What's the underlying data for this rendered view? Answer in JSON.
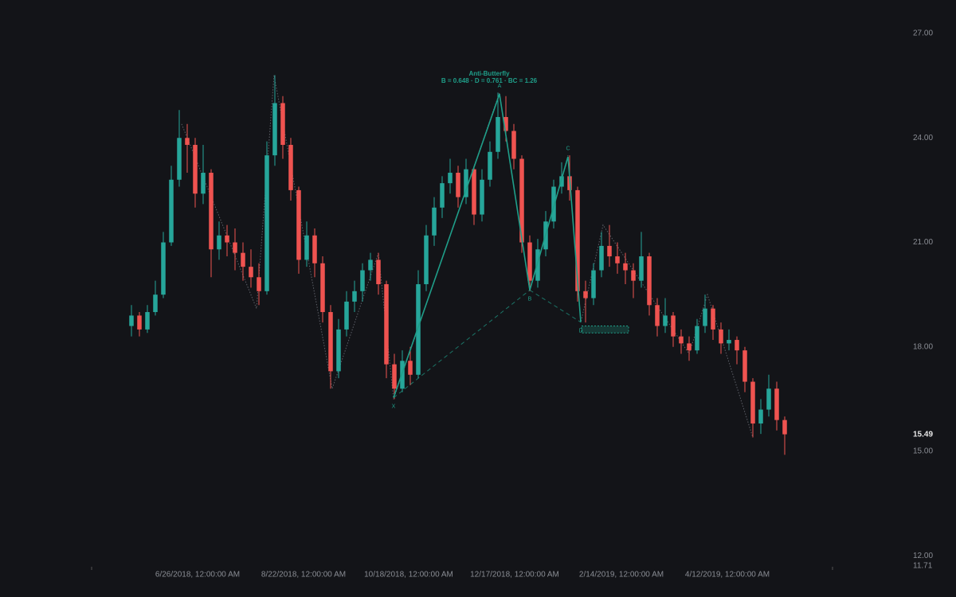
{
  "chart_data": {
    "type": "candlestick",
    "up_color": "#26a69a",
    "down_color": "#ef5350",
    "background": "#131418",
    "xlim": [
      -5,
      88
    ],
    "ylim": [
      11.71,
      27.96
    ],
    "yticks": [
      {
        "value": 12,
        "label": "12.00"
      },
      {
        "value": 15,
        "label": "15.00"
      },
      {
        "value": 18,
        "label": "18.00"
      },
      {
        "value": 21,
        "label": "21.00"
      },
      {
        "value": 24,
        "label": "24.00"
      },
      {
        "value": 27,
        "label": "27.00"
      }
    ],
    "ymin_label": {
      "value": 11.71,
      "label": "11.71"
    },
    "last_price": 15.49,
    "xticks": [
      {
        "value": 8.3,
        "label": "6/26/2018, 12:00:00 AM"
      },
      {
        "value": 21.6,
        "label": "8/22/2018, 12:00:00 AM"
      },
      {
        "value": 34.8,
        "label": "10/18/2018, 12:00:00 AM"
      },
      {
        "value": 48.1,
        "label": "12/17/2018, 12:00:00 AM"
      },
      {
        "value": 61.5,
        "label": "2/14/2019, 12:00:00 AM"
      },
      {
        "value": 74.8,
        "label": "4/12/2019, 12:00:00 AM"
      }
    ],
    "candles": [
      [
        18.6,
        19.2,
        18.3,
        18.9
      ],
      [
        18.9,
        19.0,
        18.3,
        18.5
      ],
      [
        18.5,
        19.2,
        18.4,
        19.0
      ],
      [
        19.0,
        19.9,
        18.9,
        19.5
      ],
      [
        19.5,
        21.3,
        19.4,
        21.0
      ],
      [
        21.0,
        23.2,
        20.9,
        22.8
      ],
      [
        22.8,
        24.8,
        22.6,
        24.0
      ],
      [
        24.0,
        24.4,
        23.0,
        23.8
      ],
      [
        23.8,
        24.0,
        22.0,
        22.4
      ],
      [
        22.4,
        23.8,
        22.1,
        23.0
      ],
      [
        23.0,
        23.1,
        20.0,
        20.8
      ],
      [
        20.8,
        21.6,
        20.5,
        21.2
      ],
      [
        21.2,
        21.5,
        20.6,
        21.0
      ],
      [
        21.0,
        21.4,
        20.2,
        20.7
      ],
      [
        20.7,
        21.0,
        19.9,
        20.3
      ],
      [
        20.3,
        20.8,
        19.7,
        20.0
      ],
      [
        20.0,
        20.4,
        19.2,
        19.6
      ],
      [
        19.6,
        23.9,
        19.5,
        23.5
      ],
      [
        23.5,
        25.8,
        23.2,
        25.0
      ],
      [
        25.0,
        25.2,
        23.4,
        23.8
      ],
      [
        23.8,
        24.0,
        22.2,
        22.5
      ],
      [
        22.5,
        22.6,
        20.1,
        20.5
      ],
      [
        20.5,
        21.6,
        20.3,
        21.2
      ],
      [
        21.2,
        21.4,
        20.0,
        20.4
      ],
      [
        20.4,
        20.6,
        18.7,
        19.0
      ],
      [
        19.0,
        19.2,
        16.8,
        17.3
      ],
      [
        17.3,
        18.8,
        17.1,
        18.5
      ],
      [
        18.5,
        19.6,
        18.3,
        19.3
      ],
      [
        19.3,
        19.9,
        19.0,
        19.6
      ],
      [
        19.6,
        20.4,
        19.3,
        20.2
      ],
      [
        20.2,
        20.7,
        19.9,
        20.5
      ],
      [
        20.5,
        20.7,
        19.5,
        19.8
      ],
      [
        19.8,
        19.9,
        17.1,
        17.5
      ],
      [
        17.5,
        17.8,
        16.5,
        16.8
      ],
      [
        16.8,
        17.9,
        16.7,
        17.6
      ],
      [
        17.6,
        18.0,
        16.9,
        17.2
      ],
      [
        17.2,
        20.2,
        17.1,
        19.8
      ],
      [
        19.8,
        21.5,
        19.6,
        21.2
      ],
      [
        21.2,
        22.3,
        20.9,
        22.0
      ],
      [
        22.0,
        22.9,
        21.7,
        22.7
      ],
      [
        22.7,
        23.4,
        22.4,
        23.0
      ],
      [
        23.0,
        23.2,
        22.0,
        22.3
      ],
      [
        22.3,
        23.4,
        22.1,
        23.1
      ],
      [
        23.1,
        23.2,
        21.5,
        21.8
      ],
      [
        21.8,
        23.1,
        21.6,
        22.8
      ],
      [
        22.8,
        23.9,
        22.6,
        23.6
      ],
      [
        23.6,
        25.3,
        23.4,
        24.6
      ],
      [
        24.6,
        25.2,
        23.9,
        24.2
      ],
      [
        24.2,
        24.4,
        23.1,
        23.4
      ],
      [
        23.4,
        23.5,
        20.7,
        21.0
      ],
      [
        21.0,
        21.2,
        19.6,
        19.9
      ],
      [
        19.9,
        21.1,
        19.7,
        20.8
      ],
      [
        20.8,
        21.9,
        20.6,
        21.6
      ],
      [
        21.6,
        22.8,
        21.4,
        22.6
      ],
      [
        22.6,
        23.3,
        22.4,
        22.9
      ],
      [
        22.9,
        23.5,
        22.2,
        22.5
      ],
      [
        22.5,
        22.6,
        19.3,
        19.6
      ],
      [
        19.6,
        19.9,
        18.7,
        19.4
      ],
      [
        19.4,
        20.4,
        19.2,
        20.2
      ],
      [
        20.2,
        21.3,
        20.0,
        20.9
      ],
      [
        20.9,
        21.5,
        20.3,
        20.6
      ],
      [
        20.6,
        21.0,
        20.1,
        20.4
      ],
      [
        20.4,
        20.7,
        19.8,
        20.2
      ],
      [
        20.2,
        20.4,
        19.4,
        19.9
      ],
      [
        19.9,
        21.3,
        19.7,
        20.6
      ],
      [
        20.6,
        20.7,
        18.9,
        19.2
      ],
      [
        19.2,
        19.4,
        18.3,
        18.6
      ],
      [
        18.6,
        19.4,
        18.4,
        18.9
      ],
      [
        18.9,
        19.0,
        18.0,
        18.3
      ],
      [
        18.3,
        18.5,
        17.8,
        18.1
      ],
      [
        18.1,
        18.3,
        17.6,
        17.9
      ],
      [
        17.9,
        18.8,
        17.8,
        18.6
      ],
      [
        18.6,
        19.5,
        18.4,
        19.1
      ],
      [
        19.1,
        19.2,
        18.2,
        18.5
      ],
      [
        18.5,
        18.7,
        17.8,
        18.1
      ],
      [
        18.1,
        18.5,
        17.9,
        18.2
      ],
      [
        18.2,
        18.3,
        17.5,
        17.9
      ],
      [
        17.9,
        18.0,
        16.7,
        17.0
      ],
      [
        17.0,
        17.1,
        15.4,
        15.8
      ],
      [
        15.8,
        16.5,
        15.5,
        16.2
      ],
      [
        16.2,
        17.2,
        16.0,
        16.8
      ],
      [
        16.8,
        17.0,
        15.6,
        15.9
      ],
      [
        15.9,
        16.0,
        14.9,
        15.49
      ]
    ],
    "zigzag": {
      "color": "#5d6068",
      "x": [
        6.3,
        15.7,
        17.9,
        25.2,
        31,
        32.9,
        46.2,
        50,
        54.8,
        56.4,
        59.2,
        70,
        72.3,
        78
      ],
      "y": [
        24.4,
        19.1,
        25.8,
        16.8,
        20.7,
        16.5,
        25.3,
        19.6,
        23.5,
        18.7,
        21.5,
        17.8,
        19.5,
        15.4
      ]
    },
    "pattern": {
      "name": "Anti-Butterfly",
      "ratios": "B = 0.648 · D = 0.761 · BC = 1.26",
      "color": "#1f9e89",
      "points": [
        {
          "label": "X",
          "x": 32.9,
          "y": 16.54
        },
        {
          "label": "A",
          "x": 46.2,
          "y": 25.26
        },
        {
          "label": "B",
          "x": 50,
          "y": 19.63
        },
        {
          "label": "C",
          "x": 54.8,
          "y": 23.46
        },
        {
          "label": "D",
          "x": 56.4,
          "y": 18.71
        }
      ],
      "zone": {
        "x": [
          56.5,
          62.4
        ],
        "y": [
          18.4,
          18.6
        ]
      }
    }
  }
}
